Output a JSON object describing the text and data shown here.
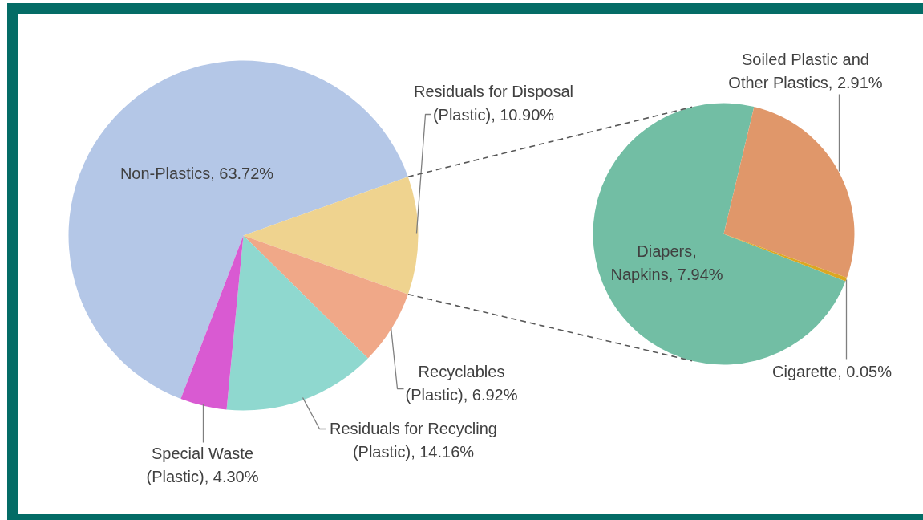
{
  "chart_data": [
    {
      "type": "pie",
      "categories": [
        "Non-Plastics",
        "Residuals for Disposal (Plastic)",
        "Recyclables (Plastic)",
        "Residuals for Recycling (Plastic)",
        "Special Waste (Plastic)"
      ],
      "values": [
        63.72,
        10.9,
        6.92,
        14.16,
        4.3
      ],
      "colors": [
        "#b4c7e7",
        "#efd38f",
        "#f0a888",
        "#8fd8cf",
        "#d95ad2"
      ],
      "value_labels": [
        "63.72%",
        "10.90%",
        "6.92%",
        "14.16%",
        "4.30%"
      ]
    },
    {
      "type": "pie",
      "categories": [
        "Diapers, Napkins",
        "Soiled Plastic and Other Plastics",
        "Cigarette"
      ],
      "values": [
        7.94,
        2.91,
        0.05
      ],
      "colors": [
        "#72bea4",
        "#e0976a",
        "#dba722"
      ],
      "value_labels": [
        "7.94%",
        "2.91%",
        "0.05%"
      ]
    }
  ]
}
